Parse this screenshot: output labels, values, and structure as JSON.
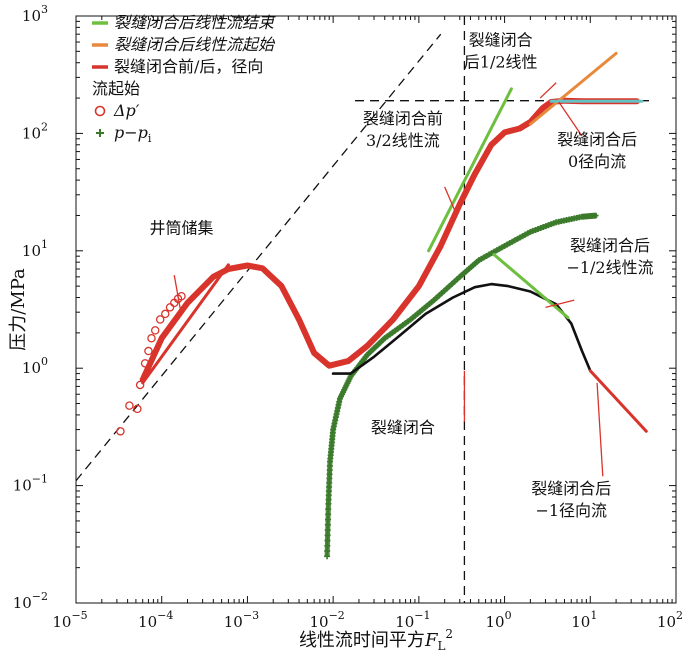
{
  "chart_data": {
    "type": "scatter",
    "x_scale": "log",
    "y_scale": "log",
    "xlim": [
      1e-05,
      100
    ],
    "ylim": [
      0.01,
      1000
    ],
    "xlabel": "线性流时间平方F_L²",
    "xlabel_main": "线性流时间平方",
    "xlabel_var": "F",
    "xlabel_sub": "L",
    "xlabel_sup": "2",
    "ylabel": "压力/MPa",
    "x_ticks": [
      {
        "value": 1e-05,
        "base": "10",
        "exp": "−5"
      },
      {
        "value": 0.0001,
        "base": "10",
        "exp": "−4"
      },
      {
        "value": 0.001,
        "base": "10",
        "exp": "−3"
      },
      {
        "value": 0.01,
        "base": "10",
        "exp": "−2"
      },
      {
        "value": 0.1,
        "base": "10",
        "exp": "−1"
      },
      {
        "value": 1,
        "base": "10",
        "exp": "0"
      },
      {
        "value": 10,
        "base": "10",
        "exp": "1"
      },
      {
        "value": 100,
        "base": "10",
        "exp": "2"
      }
    ],
    "y_ticks": [
      {
        "value": 0.01,
        "base": "10",
        "exp": "−2"
      },
      {
        "value": 0.1,
        "base": "10",
        "exp": "−1"
      },
      {
        "value": 1,
        "base": "10",
        "exp": "0"
      },
      {
        "value": 10,
        "base": "10",
        "exp": "1"
      },
      {
        "value": 100,
        "base": "10",
        "exp": "2"
      },
      {
        "value": 1000,
        "base": "10",
        "exp": "3"
      }
    ],
    "legend": {
      "position": "top-left",
      "entries": [
        {
          "label": "裂缝闭合后线性流结束",
          "color": "#6cbf3f",
          "marker": "line"
        },
        {
          "label": "裂缝闭合后线性流起始",
          "color": "#e8893a",
          "marker": "line"
        },
        {
          "label": "裂缝闭合前/后，径向流起始",
          "label_lines": [
            "裂缝闭合前/后，径向",
            "流起始"
          ],
          "color": "#d9342b",
          "marker": "line"
        },
        {
          "label": "Δp′",
          "color": "#d9342b",
          "marker": "circle"
        },
        {
          "label": "p−p_i",
          "label_main": "p−p",
          "label_sub": "i",
          "color": "#3b7a2a",
          "marker": "plus"
        }
      ]
    },
    "series": [
      {
        "name": "Δp′",
        "kind": "points",
        "color": "#d9342b",
        "points": [
          [
            3.3e-05,
            0.29
          ],
          [
            4.2e-05,
            0.48
          ],
          [
            5.2e-05,
            0.45
          ],
          [
            5.6e-05,
            0.72
          ],
          [
            6.4e-05,
            1.1
          ],
          [
            7e-05,
            1.4
          ],
          [
            7.6e-05,
            1.8
          ],
          [
            8.4e-05,
            2.1
          ],
          [
            9.6e-05,
            2.6
          ],
          [
            0.00011,
            2.9
          ],
          [
            0.000125,
            3.3
          ],
          [
            0.00014,
            3.6
          ],
          [
            0.000155,
            3.9
          ],
          [
            0.00017,
            4.1
          ]
        ]
      },
      {
        "name": "Δp′",
        "kind": "curve",
        "color": "#d9342b",
        "points": [
          [
            6e-05,
            0.8
          ],
          [
            0.0001,
            1.8
          ],
          [
            0.0002,
            3.6
          ],
          [
            0.0004,
            6.0
          ],
          [
            0.0006,
            7.0
          ],
          [
            0.001,
            7.5
          ],
          [
            0.0015,
            7.1
          ],
          [
            0.0025,
            5.0
          ],
          [
            0.004,
            2.6
          ],
          [
            0.006,
            1.35
          ],
          [
            0.009,
            1.05
          ],
          [
            0.015,
            1.15
          ],
          [
            0.025,
            1.55
          ],
          [
            0.05,
            2.6
          ],
          [
            0.1,
            5.0
          ],
          [
            0.18,
            11
          ],
          [
            0.3,
            25
          ],
          [
            0.45,
            45
          ],
          [
            0.7,
            80
          ],
          [
            1.0,
            102
          ],
          [
            1.5,
            110
          ],
          [
            2.0,
            125
          ],
          [
            2.8,
            165
          ],
          [
            3.5,
            185
          ],
          [
            5,
            190
          ],
          [
            8,
            188
          ],
          [
            12,
            188
          ],
          [
            20,
            188
          ],
          [
            35,
            188
          ]
        ]
      },
      {
        "name": "p−p_i",
        "kind": "curve",
        "color": "#3b7a2a",
        "points": [
          [
            0.0085,
            0.025
          ],
          [
            0.0088,
            0.07
          ],
          [
            0.0092,
            0.16
          ],
          [
            0.01,
            0.3
          ],
          [
            0.012,
            0.55
          ],
          [
            0.016,
            0.85
          ],
          [
            0.025,
            1.3
          ],
          [
            0.04,
            1.8
          ],
          [
            0.08,
            2.6
          ],
          [
            0.15,
            3.8
          ],
          [
            0.3,
            6.0
          ],
          [
            0.5,
            8.3
          ],
          [
            1.0,
            11
          ],
          [
            2,
            14.5
          ],
          [
            4,
            17.5
          ],
          [
            8,
            19.5
          ],
          [
            12,
            20
          ]
        ]
      },
      {
        "name": "",
        "kind": "curve",
        "color": "#111111",
        "points": [
          [
            0.01,
            0.9
          ],
          [
            0.016,
            0.9
          ],
          [
            0.03,
            1.25
          ],
          [
            0.06,
            1.9
          ],
          [
            0.12,
            2.9
          ],
          [
            0.25,
            4.0
          ],
          [
            0.45,
            4.9
          ],
          [
            0.7,
            5.2
          ],
          [
            1.1,
            5.0
          ],
          [
            2,
            4.5
          ],
          [
            4,
            3.5
          ],
          [
            6,
            2.4
          ],
          [
            8,
            1.4
          ],
          [
            10,
            0.95
          ]
        ]
      },
      {
        "name": "裂缝闭合后线性流结束",
        "kind": "fit",
        "color": "#6cbf3f",
        "points": [
          [
            0.13,
            10
          ],
          [
            1.2,
            240
          ]
        ]
      },
      {
        "name": "裂缝闭合后线性流结束",
        "kind": "fit",
        "color": "#6cbf3f",
        "points": [
          [
            0.75,
            9.3
          ],
          [
            5.5,
            2.7
          ]
        ]
      },
      {
        "name": "裂缝闭合后线性流起始",
        "kind": "fit",
        "color": "#e8893a",
        "points": [
          [
            2.0,
            120
          ],
          [
            20,
            480
          ]
        ]
      },
      {
        "name": "裂缝闭合前/后，径向流起始",
        "kind": "fit",
        "color": "#d9342b",
        "points": [
          [
            6e-05,
            0.75
          ],
          [
            0.0006,
            7.6
          ]
        ]
      },
      {
        "name": "裂缝闭合前/后，径向流起始",
        "kind": "fit",
        "color": "#d9342b",
        "points": [
          [
            0.18,
            11
          ],
          [
            0.45,
            45
          ]
        ]
      },
      {
        "name": "裂缝闭合前/后，径向流起始",
        "kind": "fit",
        "color": "#d9342b",
        "points": [
          [
            10,
            0.95
          ],
          [
            45,
            0.29
          ]
        ]
      },
      {
        "name": "",
        "kind": "fit",
        "color": "#66c2c2",
        "points": [
          [
            3.5,
            188
          ],
          [
            40,
            188
          ]
        ]
      }
    ],
    "reference_lines": [
      {
        "kind": "diagonal",
        "style": "dashed",
        "color": "#111111",
        "points": [
          [
            1e-05,
            0.11
          ],
          [
            0.18,
            700
          ]
        ]
      },
      {
        "kind": "vertical",
        "style": "dashed",
        "color": "#111111",
        "x": 0.34
      },
      {
        "kind": "horizontal",
        "style": "dashed",
        "color": "#111111",
        "y": 190,
        "x_from": 0.018,
        "x_to": 50
      }
    ],
    "annotations": [
      {
        "lines": [
          "裂缝闭合",
          "后1/2线性"
        ],
        "text_at": [
          0.9,
          560
        ],
        "leader": {
          "from": [
            2.6,
            200
          ],
          "to": [
            4.0,
            270
          ]
        },
        "leader_color": "#d9342b"
      },
      {
        "lines": [
          "裂缝闭合前",
          "3/2线性流"
        ],
        "text_at": [
          0.065,
          120
        ],
        "leader": {
          "from": [
            0.2,
            35
          ],
          "to": [
            0.27,
            21
          ]
        },
        "leader_color": "#d9342b"
      },
      {
        "lines": [
          "裂缝闭合后",
          "0径向流"
        ],
        "text_at": [
          12,
          80
        ],
        "leader": {
          "from": [
            4.3,
            185
          ],
          "to": [
            8,
            95
          ]
        },
        "leader_color": "#d9342b"
      },
      {
        "lines": [
          "井筒储集"
        ],
        "text_at": [
          0.00017,
          14
        ],
        "leader": {
          "from": [
            0.00014,
            6.2
          ],
          "to": [
            0.00017,
            2.8
          ]
        },
        "leader_color": "#d9342b"
      },
      {
        "lines": [
          "裂缝闭合后",
          "−1/2线性流"
        ],
        "text_at": [
          17,
          10
        ],
        "leader": {
          "from": [
            3,
            3.3
          ],
          "to": [
            6.5,
            3.8
          ]
        },
        "leader_color": "#d9342b"
      },
      {
        "lines": [
          "裂缝闭合"
        ],
        "text_at": [
          0.065,
          0.28
        ],
        "leader": {
          "from": [
            0.34,
            0.35
          ],
          "to": [
            0.34,
            0.95
          ]
        },
        "leader_color": "#d9342b"
      },
      {
        "lines": [
          "裂缝闭合后",
          "−1径向流"
        ],
        "text_at": [
          6,
          0.085
        ],
        "leader": {
          "from": [
            12,
            0.75
          ],
          "to": [
            14,
            0.12
          ]
        },
        "leader_color": "#d9342b"
      }
    ]
  }
}
